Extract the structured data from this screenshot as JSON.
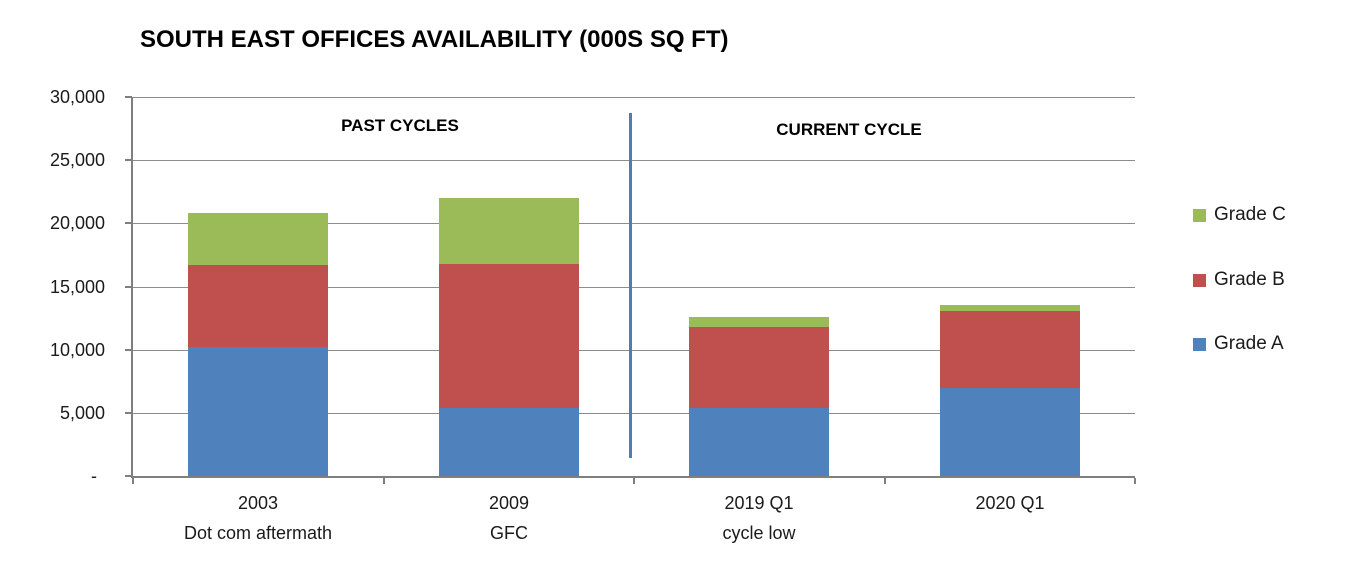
{
  "chart_data": {
    "type": "bar",
    "stacked": true,
    "title": "SOUTH EAST OFFICES AVAILABILITY (000S SQ FT)",
    "categories": [
      "2003",
      "2009",
      "2019 Q1",
      "2020 Q1"
    ],
    "category_sublabels": [
      "Dot com aftermath",
      "GFC",
      "cycle low",
      ""
    ],
    "series": [
      {
        "name": "Grade A",
        "color": "#4F81BD",
        "values": [
          10200,
          5400,
          5400,
          7000
        ]
      },
      {
        "name": "Grade B",
        "color": "#C0504D",
        "values": [
          6500,
          11400,
          6400,
          6100
        ]
      },
      {
        "name": "Grade C",
        "color": "#9BBB59",
        "values": [
          4100,
          5200,
          800,
          400
        ]
      }
    ],
    "ylim": [
      0,
      30000
    ],
    "ytick_interval": 5000,
    "ytick_labels": [
      "-",
      "5,000",
      "10,000",
      "15,000",
      "20,000",
      "25,000",
      "30,000"
    ],
    "sections": {
      "past": "PAST CYCLES",
      "current": "CURRENT CYCLE"
    },
    "legend": {
      "position": "right",
      "items": [
        "Grade C",
        "Grade B",
        "Grade A"
      ]
    },
    "colors": {
      "grid": "#8C8C8C",
      "axis": "#7F7F7F",
      "separator": "#4A7EBB",
      "text": "#1A1A1A"
    },
    "grid": true
  }
}
